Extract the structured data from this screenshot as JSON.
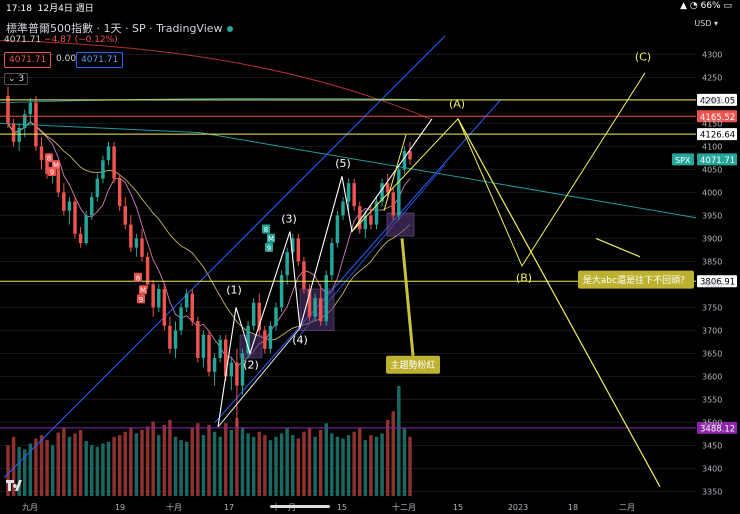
{
  "status_bar": {
    "time": "17:18",
    "date": "12月4日 週日",
    "battery": "66%"
  },
  "header": {
    "title": "標準普爾500指數 · 1天 · SP · TradingView",
    "quote": {
      "last": "4071.71",
      "change": "−4.87",
      "change_pct": "(−0.12%)"
    },
    "price_boxes": [
      "4071.71",
      "0.00",
      "4071.71"
    ],
    "collapse_count": "3",
    "currency": "USD"
  },
  "colors": {
    "up": "#26a69a",
    "down": "#ef5350",
    "yellow": "#f0f05a",
    "blue": "#2962ff",
    "purple": "#8e24aa"
  },
  "chart_data": {
    "type": "candlestick",
    "y_axis": {
      "min": 3340,
      "max": 4340,
      "ticks": [
        4300,
        4250,
        4200,
        4150,
        4100,
        4050,
        4000,
        3950,
        3900,
        3850,
        3800,
        3750,
        3700,
        3650,
        3600,
        3550,
        3500,
        3450,
        3400,
        3350
      ]
    },
    "x_axis": {
      "labels": [
        "九月",
        "19",
        "十月",
        "17",
        "十一月",
        "15",
        "十二月",
        "15",
        "2023",
        "18",
        "二月"
      ]
    },
    "ohlc": [
      [
        4210,
        4230,
        4140,
        4150
      ],
      [
        4150,
        4160,
        4100,
        4110
      ],
      [
        4110,
        4150,
        4090,
        4140
      ],
      [
        4140,
        4180,
        4120,
        4170
      ],
      [
        4170,
        4205,
        4150,
        4195
      ],
      [
        4195,
        4210,
        4090,
        4100
      ],
      [
        4100,
        4120,
        4050,
        4070
      ],
      [
        4070,
        4085,
        4030,
        4040
      ],
      [
        4040,
        4060,
        4020,
        4050
      ],
      [
        4050,
        4060,
        3990,
        4000
      ],
      [
        4000,
        4020,
        3950,
        3960
      ],
      [
        3960,
        3990,
        3930,
        3980
      ],
      [
        3980,
        3990,
        3900,
        3910
      ],
      [
        3910,
        3925,
        3880,
        3890
      ],
      [
        3890,
        3960,
        3885,
        3950
      ],
      [
        3950,
        4000,
        3940,
        3990
      ],
      [
        3990,
        4040,
        3980,
        4030
      ],
      [
        4030,
        4080,
        4020,
        4070
      ],
      [
        4070,
        4110,
        4060,
        4100
      ],
      [
        4100,
        4110,
        4020,
        4030
      ],
      [
        4030,
        4040,
        3960,
        3970
      ],
      [
        3970,
        3990,
        3920,
        3930
      ],
      [
        3930,
        3950,
        3870,
        3880
      ],
      [
        3880,
        3910,
        3860,
        3900
      ],
      [
        3900,
        3920,
        3850,
        3860
      ],
      [
        3860,
        3870,
        3790,
        3800
      ],
      [
        3800,
        3810,
        3730,
        3750
      ],
      [
        3750,
        3800,
        3740,
        3790
      ],
      [
        3790,
        3800,
        3700,
        3710
      ],
      [
        3710,
        3730,
        3650,
        3660
      ],
      [
        3660,
        3720,
        3640,
        3700
      ],
      [
        3700,
        3760,
        3690,
        3750
      ],
      [
        3750,
        3790,
        3740,
        3780
      ],
      [
        3780,
        3790,
        3710,
        3720
      ],
      [
        3720,
        3730,
        3630,
        3640
      ],
      [
        3640,
        3700,
        3620,
        3690
      ],
      [
        3690,
        3700,
        3600,
        3610
      ],
      [
        3610,
        3650,
        3580,
        3640
      ],
      [
        3640,
        3690,
        3630,
        3680
      ],
      [
        3680,
        3690,
        3590,
        3600
      ],
      [
        3600,
        3640,
        3570,
        3630
      ],
      [
        3630,
        3660,
        3490,
        3580
      ],
      [
        3580,
        3660,
        3560,
        3650
      ],
      [
        3650,
        3720,
        3640,
        3710
      ],
      [
        3710,
        3770,
        3700,
        3760
      ],
      [
        3760,
        3780,
        3690,
        3700
      ],
      [
        3700,
        3710,
        3650,
        3660
      ],
      [
        3660,
        3720,
        3650,
        3710
      ],
      [
        3710,
        3760,
        3700,
        3750
      ],
      [
        3750,
        3830,
        3740,
        3820
      ],
      [
        3820,
        3880,
        3800,
        3870
      ],
      [
        3870,
        3910,
        3850,
        3900
      ],
      [
        3900,
        3910,
        3840,
        3850
      ],
      [
        3850,
        3860,
        3780,
        3790
      ],
      [
        3790,
        3800,
        3720,
        3730
      ],
      [
        3730,
        3780,
        3720,
        3770
      ],
      [
        3770,
        3800,
        3710,
        3720
      ],
      [
        3720,
        3830,
        3710,
        3820
      ],
      [
        3820,
        3900,
        3810,
        3890
      ],
      [
        3890,
        3960,
        3880,
        3950
      ],
      [
        3950,
        3990,
        3940,
        3980
      ],
      [
        3980,
        4030,
        3960,
        4020
      ],
      [
        4020,
        4030,
        3960,
        3970
      ],
      [
        3970,
        3980,
        3910,
        3920
      ],
      [
        3920,
        3960,
        3900,
        3950
      ],
      [
        3950,
        3970,
        3920,
        3930
      ],
      [
        3930,
        3990,
        3920,
        3980
      ],
      [
        3980,
        4030,
        3970,
        4020
      ],
      [
        4020,
        4040,
        3990,
        4000
      ],
      [
        4000,
        4010,
        3940,
        3950
      ],
      [
        3950,
        4060,
        3940,
        4050
      ],
      [
        4050,
        4100,
        4040,
        4090
      ],
      [
        4090,
        4110,
        4060,
        4071.71
      ]
    ],
    "volume": [
      60,
      70,
      58,
      55,
      62,
      68,
      72,
      66,
      60,
      75,
      80,
      70,
      74,
      78,
      65,
      60,
      58,
      62,
      64,
      70,
      72,
      76,
      80,
      74,
      78,
      82,
      88,
      72,
      84,
      90,
      70,
      66,
      64,
      80,
      86,
      72,
      84,
      76,
      70,
      86,
      78,
      92,
      80,
      74,
      70,
      76,
      72,
      66,
      70,
      74,
      80,
      72,
      68,
      76,
      80,
      70,
      78,
      86,
      74,
      70,
      68,
      72,
      76,
      80,
      66,
      72,
      70,
      74,
      90,
      100,
      130,
      80,
      70
    ],
    "horizontal_levels": [
      {
        "value": 4201.05,
        "label": "4201.05",
        "color": "#f0f05a"
      },
      {
        "value": 4165.52,
        "label": "4165.52",
        "color": "#ef5350"
      },
      {
        "value": 4126.64,
        "label": "4126.64",
        "color": "#f0f05a"
      },
      {
        "value": 3806.91,
        "label": "3806.91",
        "color": "#f0f05a"
      },
      {
        "value": 3488.12,
        "label": "3488.12",
        "color": "#8e24aa"
      }
    ],
    "current_price": {
      "value": 4071.71,
      "label": "4071.71",
      "symbol": "SPX"
    },
    "wave_labels": [
      "(1)",
      "(2)",
      "(3)",
      "(4)",
      "(5)",
      "(A)",
      "(B)",
      "(C)"
    ],
    "annotations": [
      "主趨勢粉紅",
      "是大abc還是往下不回頭？"
    ],
    "markers": [
      {
        "text": "8",
        "color": "#ef5350"
      },
      {
        "text": "M",
        "color": "#ef5350"
      },
      {
        "text": "9",
        "color": "#ef5350"
      },
      {
        "text": "8",
        "color": "#ef5350"
      },
      {
        "text": "M",
        "color": "#ef5350"
      },
      {
        "text": "9",
        "color": "#ef5350"
      },
      {
        "text": "8",
        "color": "#26a69a"
      },
      {
        "text": "M",
        "color": "#26a69a"
      },
      {
        "text": "9",
        "color": "#26a69a"
      }
    ]
  }
}
